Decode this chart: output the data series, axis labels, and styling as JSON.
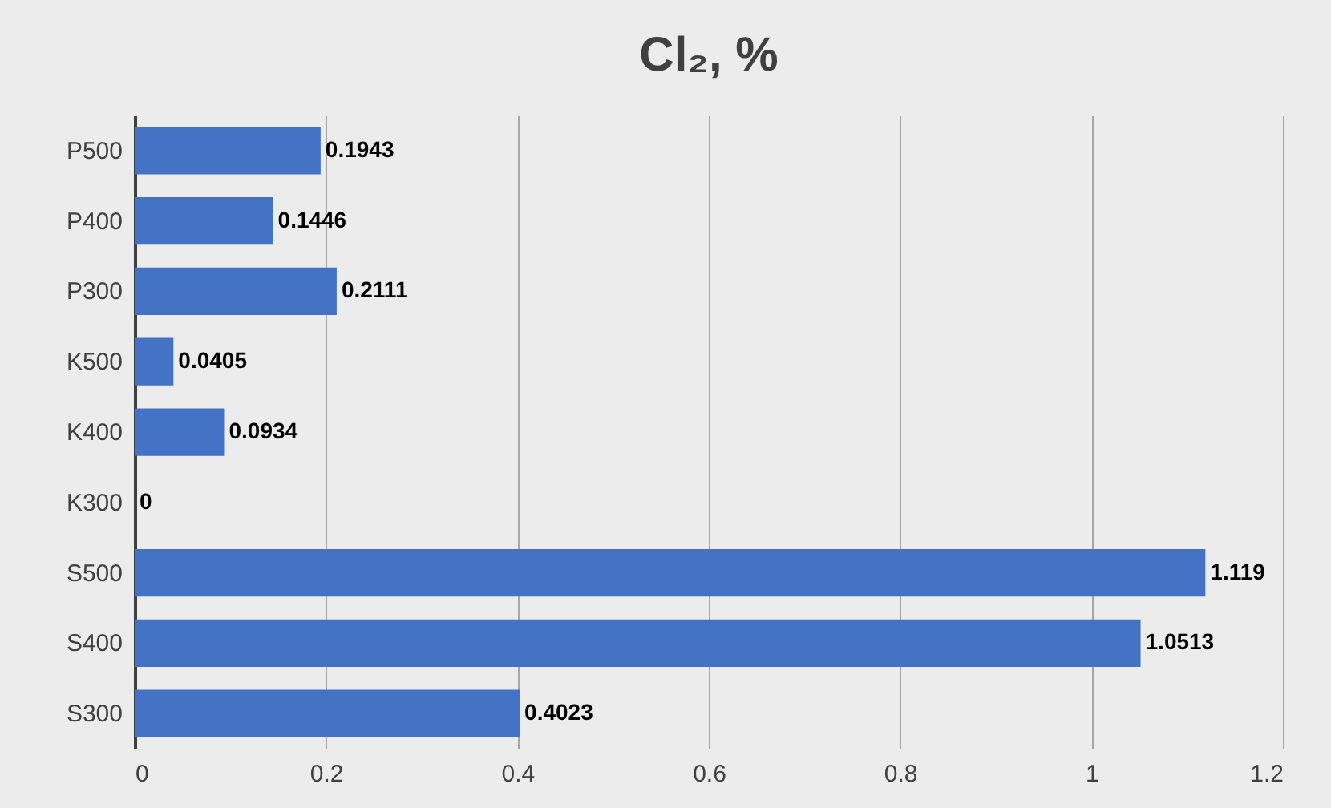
{
  "chart_data": {
    "type": "bar",
    "orientation": "horizontal",
    "title": "Cl₂, %",
    "categories": [
      "P500",
      "P400",
      "P300",
      "K500",
      "K400",
      "K300",
      "S500",
      "S400",
      "S300"
    ],
    "values": [
      0.1943,
      0.1446,
      0.2111,
      0.0405,
      0.0934,
      0,
      1.119,
      1.0513,
      0.4023
    ],
    "color": "#4472c4",
    "xlim": [
      0,
      1.2
    ],
    "xticks": [
      0,
      0.2,
      0.4,
      0.6,
      0.8,
      1,
      1.2
    ],
    "grid": "x",
    "data_labels": true
  }
}
